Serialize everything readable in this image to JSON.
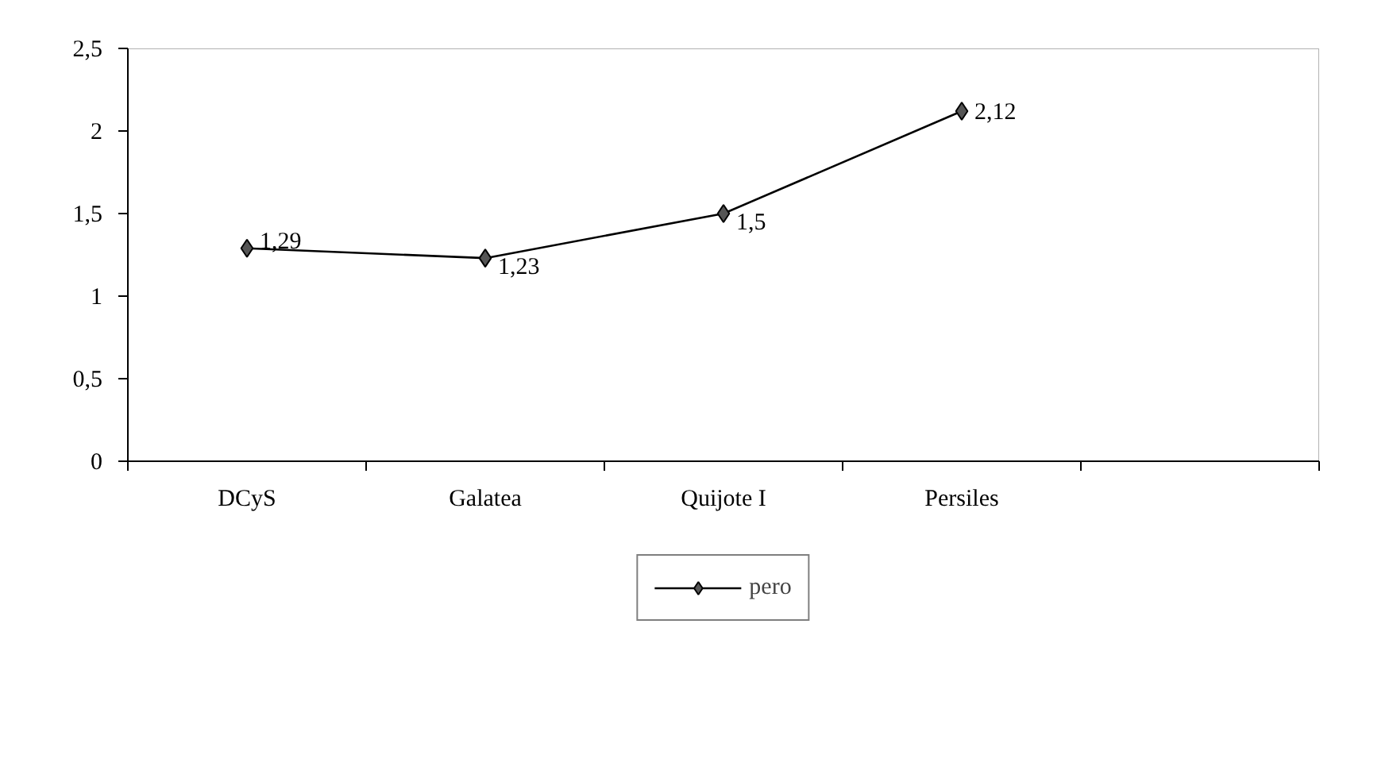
{
  "chart_data": {
    "type": "line",
    "categories": [
      "DCyS",
      "Galatea",
      "Quijote I",
      "Persiles",
      null
    ],
    "series": [
      {
        "name": "pero",
        "color": "#000000",
        "values": [
          1.29,
          1.23,
          1.5,
          2.12,
          null
        ],
        "value_labels": [
          "1,29",
          "1,23",
          "1,5",
          "2,12",
          null
        ]
      }
    ],
    "ylim": [
      0,
      2.5
    ],
    "yticks": [
      0,
      {
        "value": 0.5,
        "label": "0,5"
      },
      1,
      {
        "value": 1.5,
        "label": "1,5"
      },
      2,
      {
        "value": 2.5,
        "label": "2,5"
      }
    ],
    "grid": false,
    "legend": "bottom",
    "marker": "diamond",
    "line_style": "solid"
  }
}
